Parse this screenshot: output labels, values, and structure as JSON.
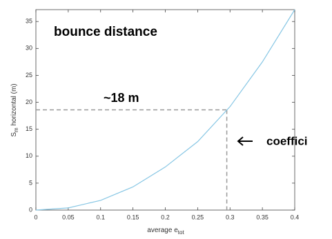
{
  "chart_data": {
    "type": "line",
    "x_label": {
      "base": "average e",
      "sub": "tot"
    },
    "y_label": {
      "base": "S",
      "sub": "m",
      "rest": " horizontal (m)"
    },
    "x": [
      0,
      0.05,
      0.1,
      0.15,
      0.2,
      0.25,
      0.3,
      0.35,
      0.4
    ],
    "series": [
      {
        "color": "#86c6e4",
        "values": [
          0,
          0.4,
          1.8,
          4.3,
          8,
          12.7,
          19.2,
          27.5,
          37.2
        ]
      }
    ],
    "xlim": [
      0,
      0.4
    ],
    "xticks": [
      0,
      0.05,
      0.1,
      0.15,
      0.2,
      0.25,
      0.3,
      0.35,
      0.4
    ],
    "ylim": [
      0,
      37.2
    ],
    "yticks": [
      0,
      5,
      10,
      15,
      20,
      25,
      30,
      35
    ],
    "reference": {
      "x": 0.295,
      "y": 18.6,
      "color": "#999999"
    },
    "annotations": [
      "bounce distance",
      "~18 m",
      "coeffici"
    ]
  }
}
